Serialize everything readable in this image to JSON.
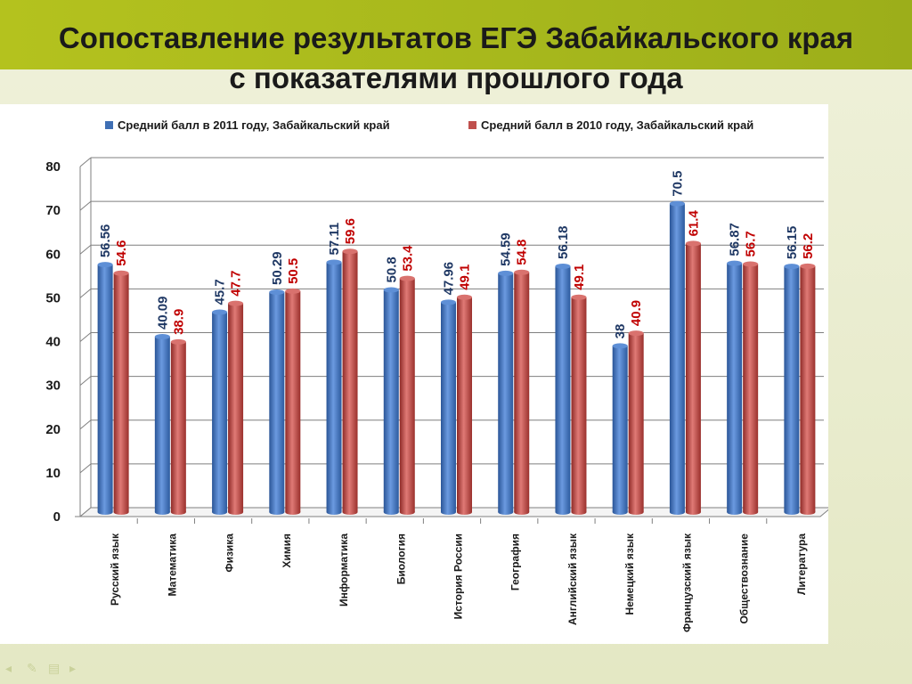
{
  "title": {
    "line1": "Сопоставление результатов ЕГЭ Забайкальского края",
    "line2": "с показателями прошлого года"
  },
  "colors": {
    "series_2011": "#3f6fb4",
    "series_2010": "#c0504d",
    "label_2011": "#1f3864",
    "label_2010": "#c00000",
    "band": "#a6b71c"
  },
  "chart_data": {
    "type": "bar",
    "categories": [
      "Русский язык",
      "Математика",
      "Физика",
      "Химия",
      "Информатика",
      "Биология",
      "История России",
      "География",
      "Английский язык",
      "Немецкий язык",
      "Французский язык",
      "Обществознание",
      "Литература"
    ],
    "series": [
      {
        "name": "Средний балл в 2011 году, Забайкальский край",
        "values": [
          56.56,
          40.09,
          45.7,
          50.29,
          57.11,
          50.8,
          47.96,
          54.59,
          56.18,
          38,
          70.5,
          56.87,
          56.15
        ]
      },
      {
        "name": "Средний балл в 2010 году, Забайкальский край",
        "values": [
          54.6,
          38.9,
          47.7,
          50.5,
          59.6,
          53.4,
          49.1,
          54.8,
          49.1,
          40.9,
          61.4,
          56.7,
          56.2
        ]
      }
    ],
    "ylim": [
      0,
      80
    ],
    "yticks": [
      0,
      10,
      20,
      30,
      40,
      50,
      60,
      70,
      80
    ],
    "grid": true,
    "legend": "top"
  },
  "nav_icons": [
    "back-icon",
    "pen-icon",
    "menu-icon",
    "forward-icon"
  ]
}
